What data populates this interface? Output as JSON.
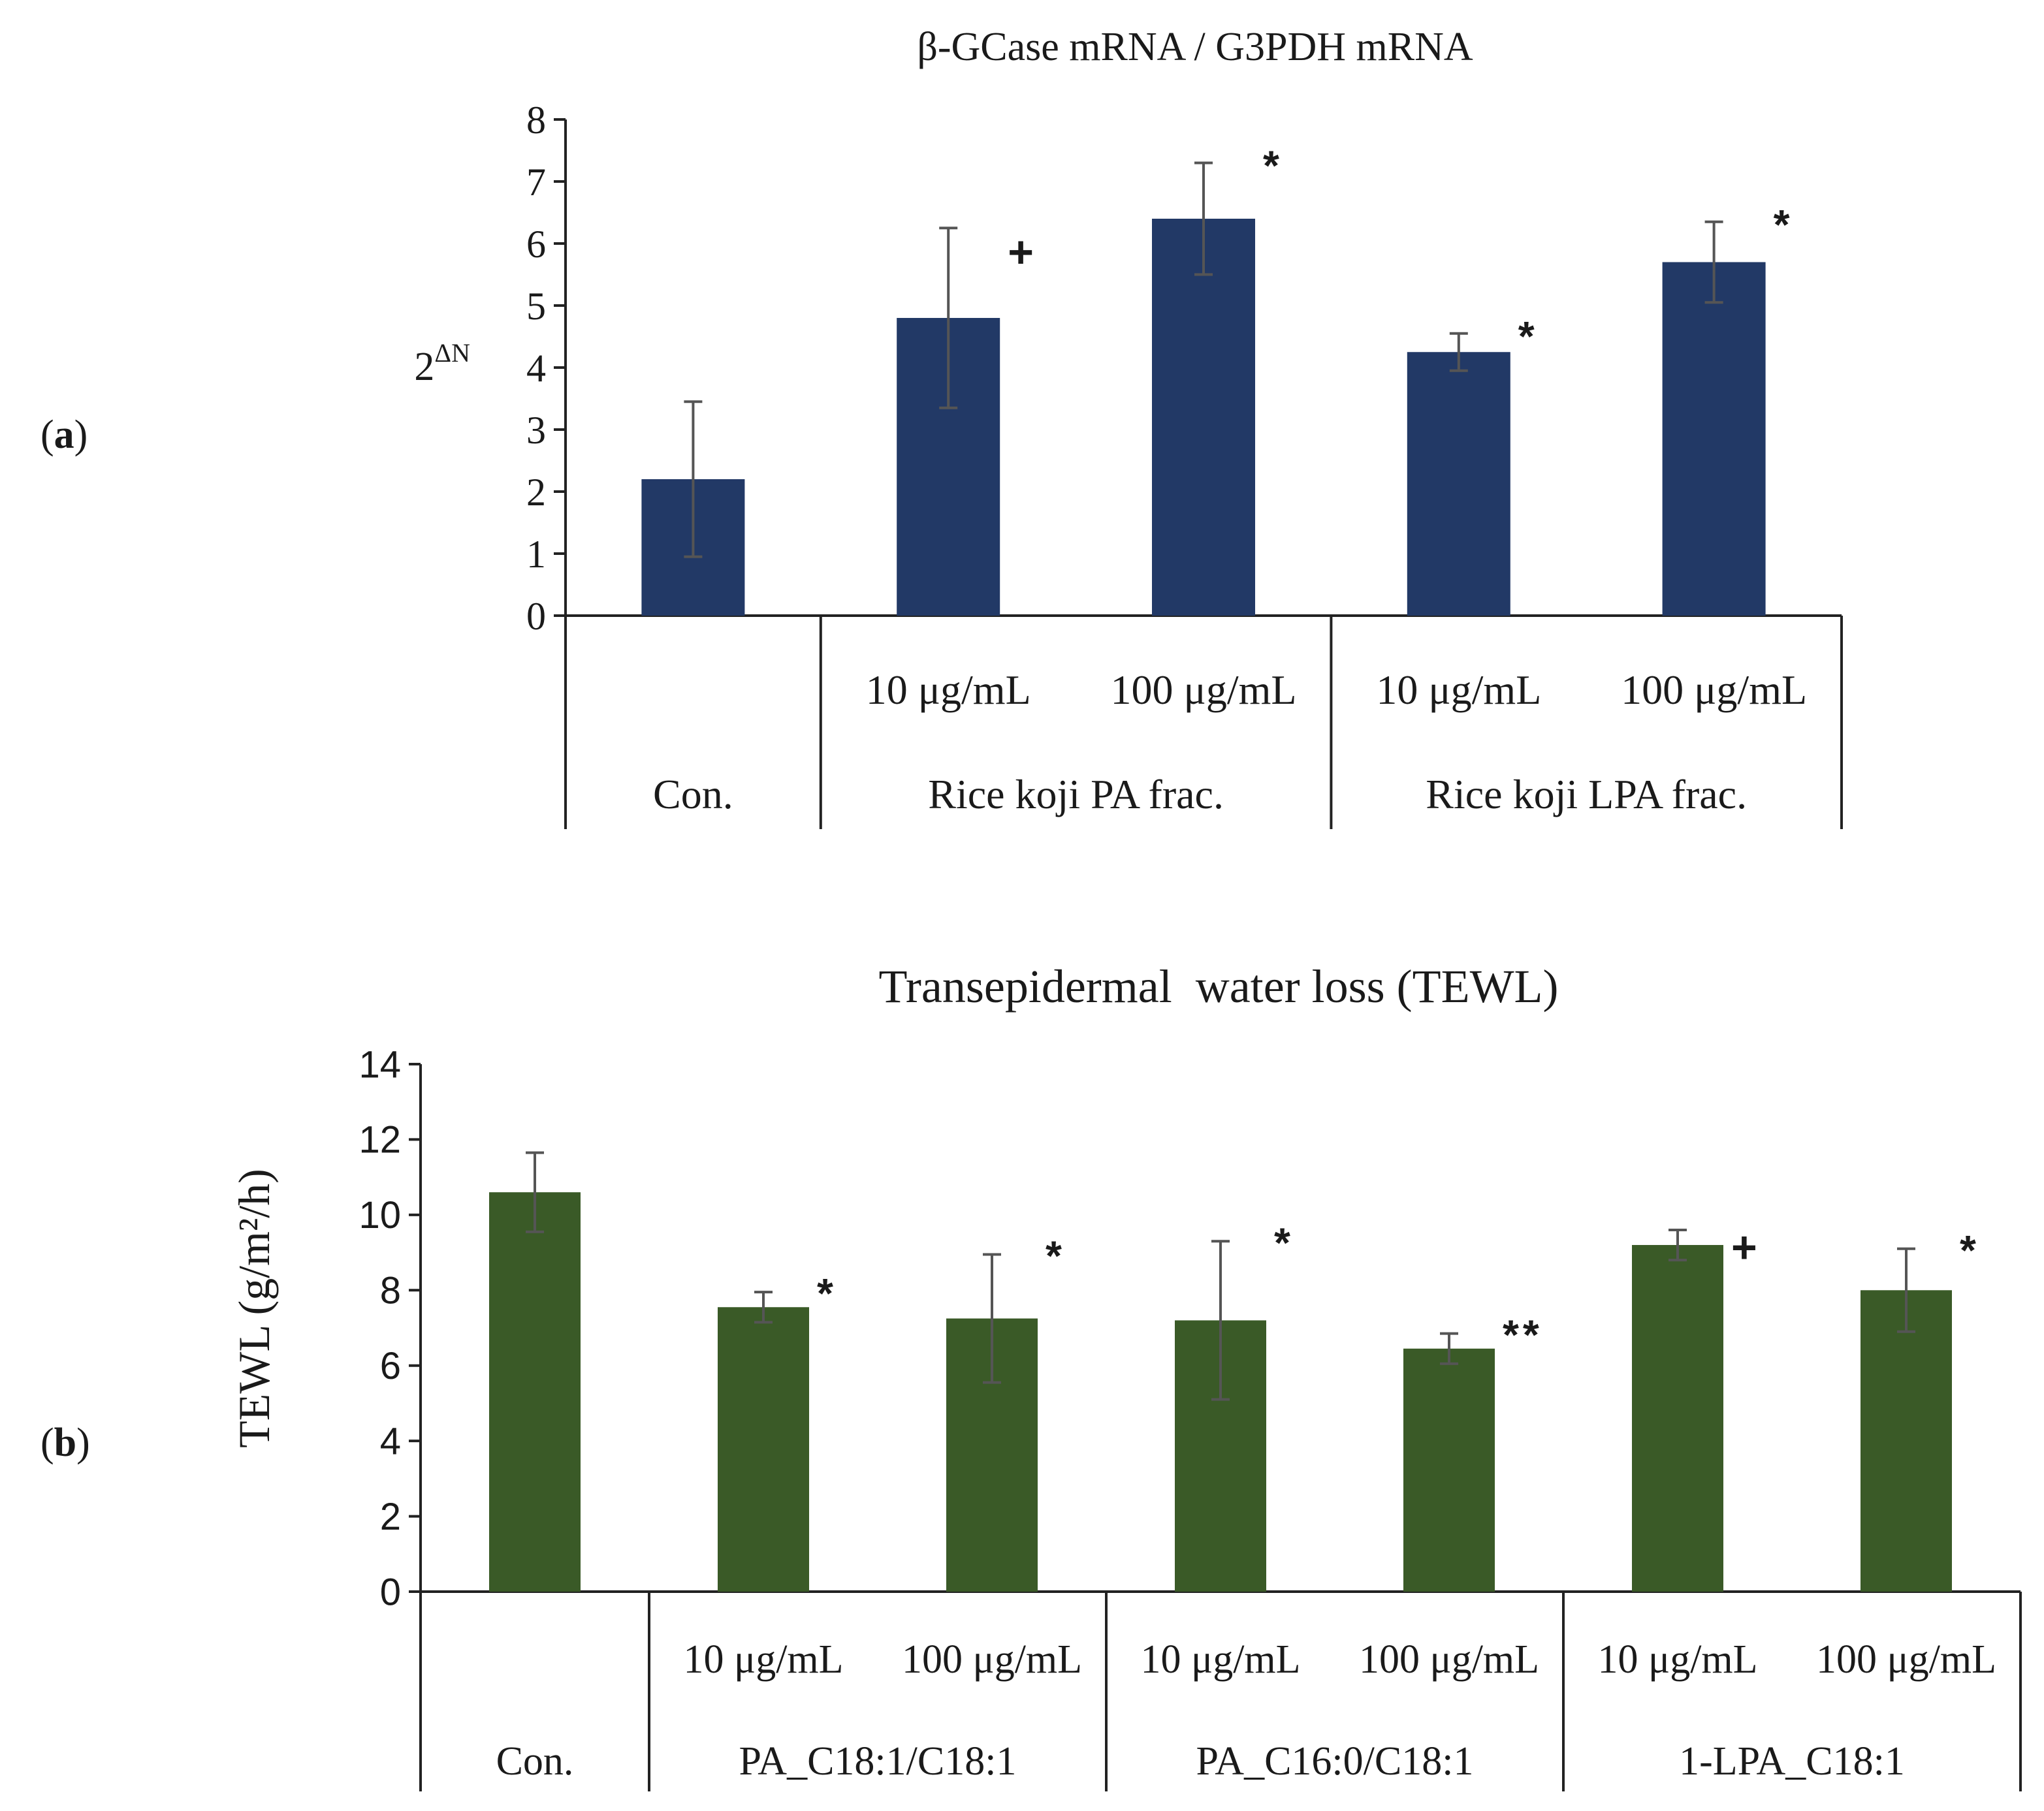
{
  "panels": {
    "a": {
      "label": "a"
    },
    "b": {
      "label": "b"
    }
  },
  "chart_data": [
    {
      "type": "bar",
      "title": "β-GCase mRNA / G3PDH mRNA",
      "ylabel_base": "2",
      "ylabel_sup": "ΔN",
      "xlabel": "",
      "ylim": [
        0,
        8
      ],
      "yticks": [
        "0",
        "1",
        "2",
        "3",
        "4",
        "5",
        "6",
        "7",
        "8"
      ],
      "bar_color": "#223966",
      "categories": [
        "",
        "10 μg/mL",
        "100 μg/mL",
        "10 μg/mL",
        "100 μg/mL"
      ],
      "groups": [
        {
          "label": "Con.",
          "bars": 1
        },
        {
          "label": "Rice koji PA frac.",
          "bars": 2
        },
        {
          "label": "Rice koji LPA frac.",
          "bars": 2
        }
      ],
      "values": [
        2.2,
        4.8,
        6.4,
        4.25,
        5.7
      ],
      "errors": [
        1.25,
        1.45,
        0.9,
        0.3,
        0.65
      ],
      "annotations": [
        "",
        "+",
        "*",
        "*",
        "*"
      ]
    },
    {
      "type": "bar",
      "title": "Transepidermal  water loss (TEWL)",
      "ylabel": "TEWL (g/m²/h)",
      "xlabel": "",
      "ylim": [
        0,
        14
      ],
      "yticks": [
        "0",
        "2",
        "4",
        "6",
        "8",
        "10",
        "12",
        "14"
      ],
      "bar_color": "#3a5a27",
      "categories": [
        "",
        "10 μg/mL",
        "100 μg/mL",
        "10 μg/mL",
        "100 μg/mL",
        "10 μg/mL",
        "100 μg/mL"
      ],
      "groups": [
        {
          "label": "Con.",
          "bars": 1
        },
        {
          "label": "PA_C18:1/C18:1",
          "bars": 2
        },
        {
          "label": "PA_C16:0/C18:1",
          "bars": 2
        },
        {
          "label": "1-LPA_C18:1",
          "bars": 2
        }
      ],
      "values": [
        10.6,
        7.55,
        7.25,
        7.2,
        6.45,
        9.2,
        8.0
      ],
      "errors": [
        1.05,
        0.4,
        1.7,
        2.1,
        0.4,
        0.4,
        1.1
      ],
      "annotations": [
        "",
        "*",
        "*",
        "*",
        "**",
        "+",
        "*"
      ]
    }
  ]
}
